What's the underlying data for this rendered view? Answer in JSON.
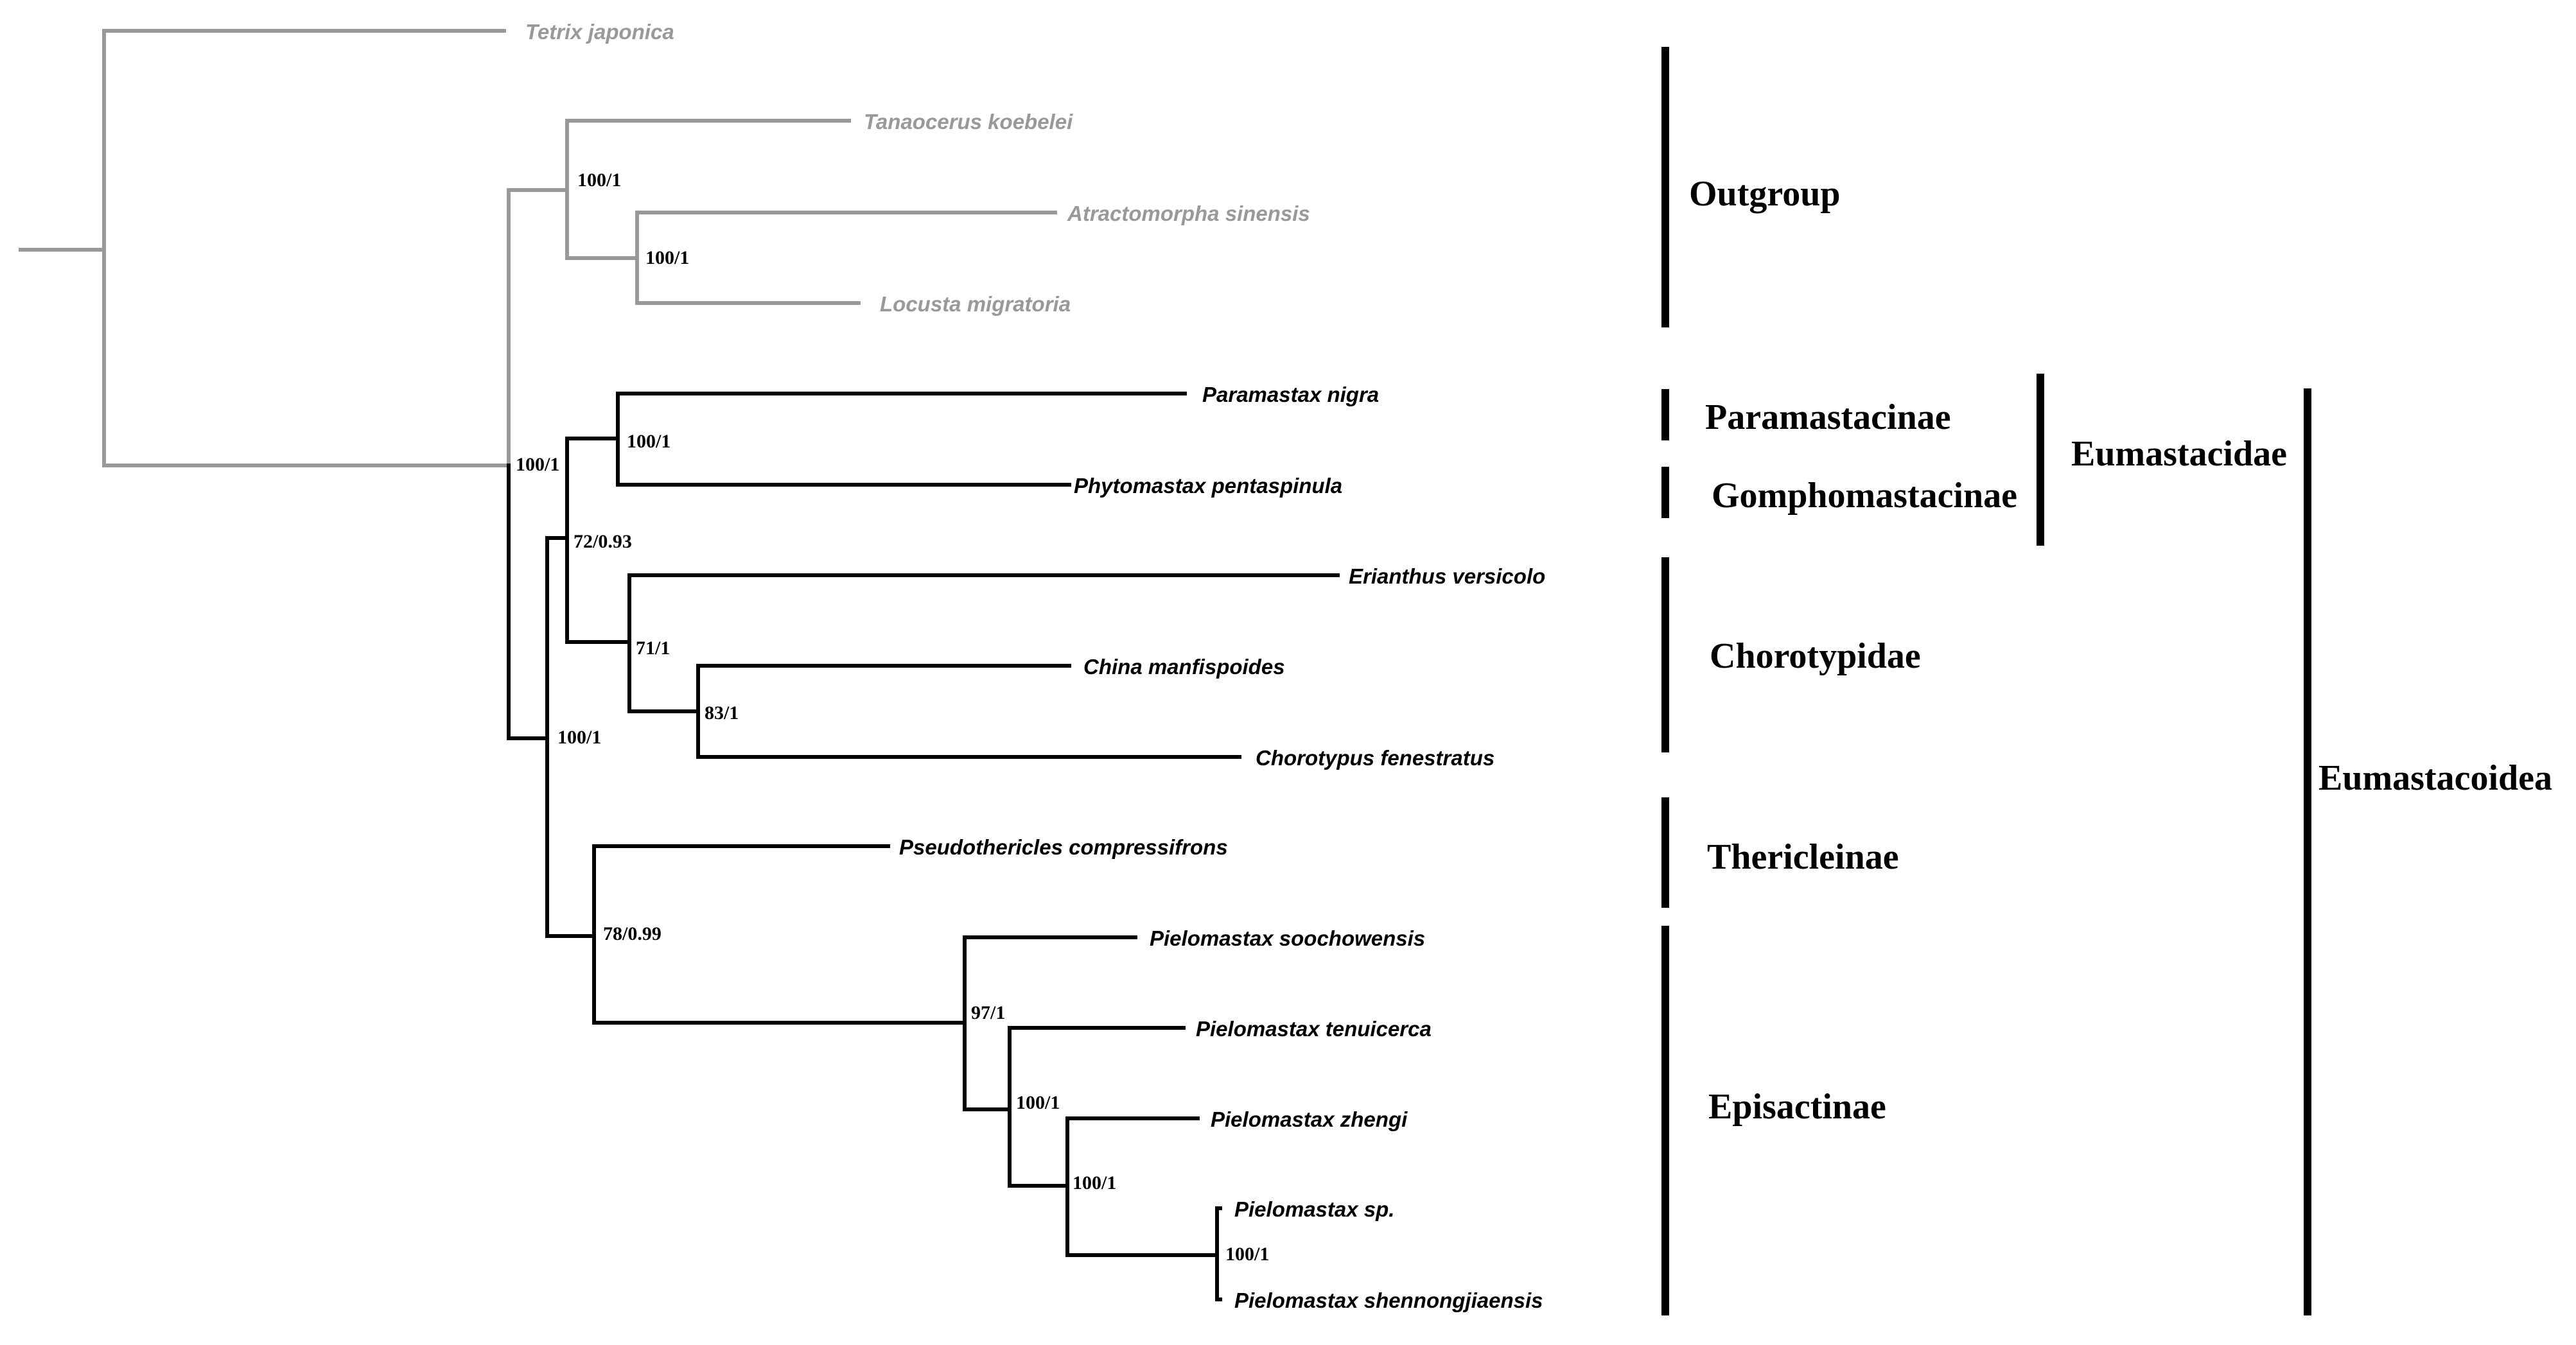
{
  "tree": {
    "taxa": {
      "tetrix": "Tetrix japonica",
      "tanaocerus": "Tanaocerus koebelei",
      "atractomorpha": "Atractomorpha sinensis",
      "locusta": "Locusta migratoria",
      "paramastax": "Paramastax nigra",
      "phytomastax": "Phytomastax pentaspinula",
      "erianthus": "Erianthus versicolo",
      "china": "China manfispoides",
      "chorotypus": "Chorotypus fenestratus",
      "pseudothericles": "Pseudothericles compressifrons",
      "soochowensis": "Pielomastax soochowensis",
      "tenuicerca": "Pielomastax tenuicerca",
      "zhengi": "Pielomastax zhengi",
      "pielo_sp": "Pielomastax sp.",
      "shennongjiaensis": "Pielomastax shennongjiaensis"
    },
    "support": {
      "tanaocerus_clade": "100/1",
      "atractomorpha_locusta": "100/1",
      "ingroup_root": "100/1",
      "paramastax_phytomastax": "100/1",
      "eumastacidae_chorotypidae": "72/0.93",
      "chorotypidae": "71/1",
      "china_chorotypus": "83/1",
      "eumastacoidea_core": "100/1",
      "thericleinae_episactinae": "78/0.99",
      "pielomastax_all": "97/1",
      "pielomastax_inner": "100/1",
      "zhengi_sp_clade": "100/1",
      "sp_shennongjiaensis": "100/1"
    }
  },
  "groups": {
    "outgroup": "Outgroup",
    "paramastacinae": "Paramastacinae",
    "gomphomastacinae": "Gomphomastacinae",
    "eumastacidae": "Eumastacidae",
    "chorotypidae": "Chorotypidae",
    "thericleinae": "Thericleinae",
    "episactinae": "Episactinae",
    "eumastacoidea": "Eumastacoidea"
  },
  "colors": {
    "outgroup_branch": "#999999",
    "ingroup_branch": "#000000"
  }
}
